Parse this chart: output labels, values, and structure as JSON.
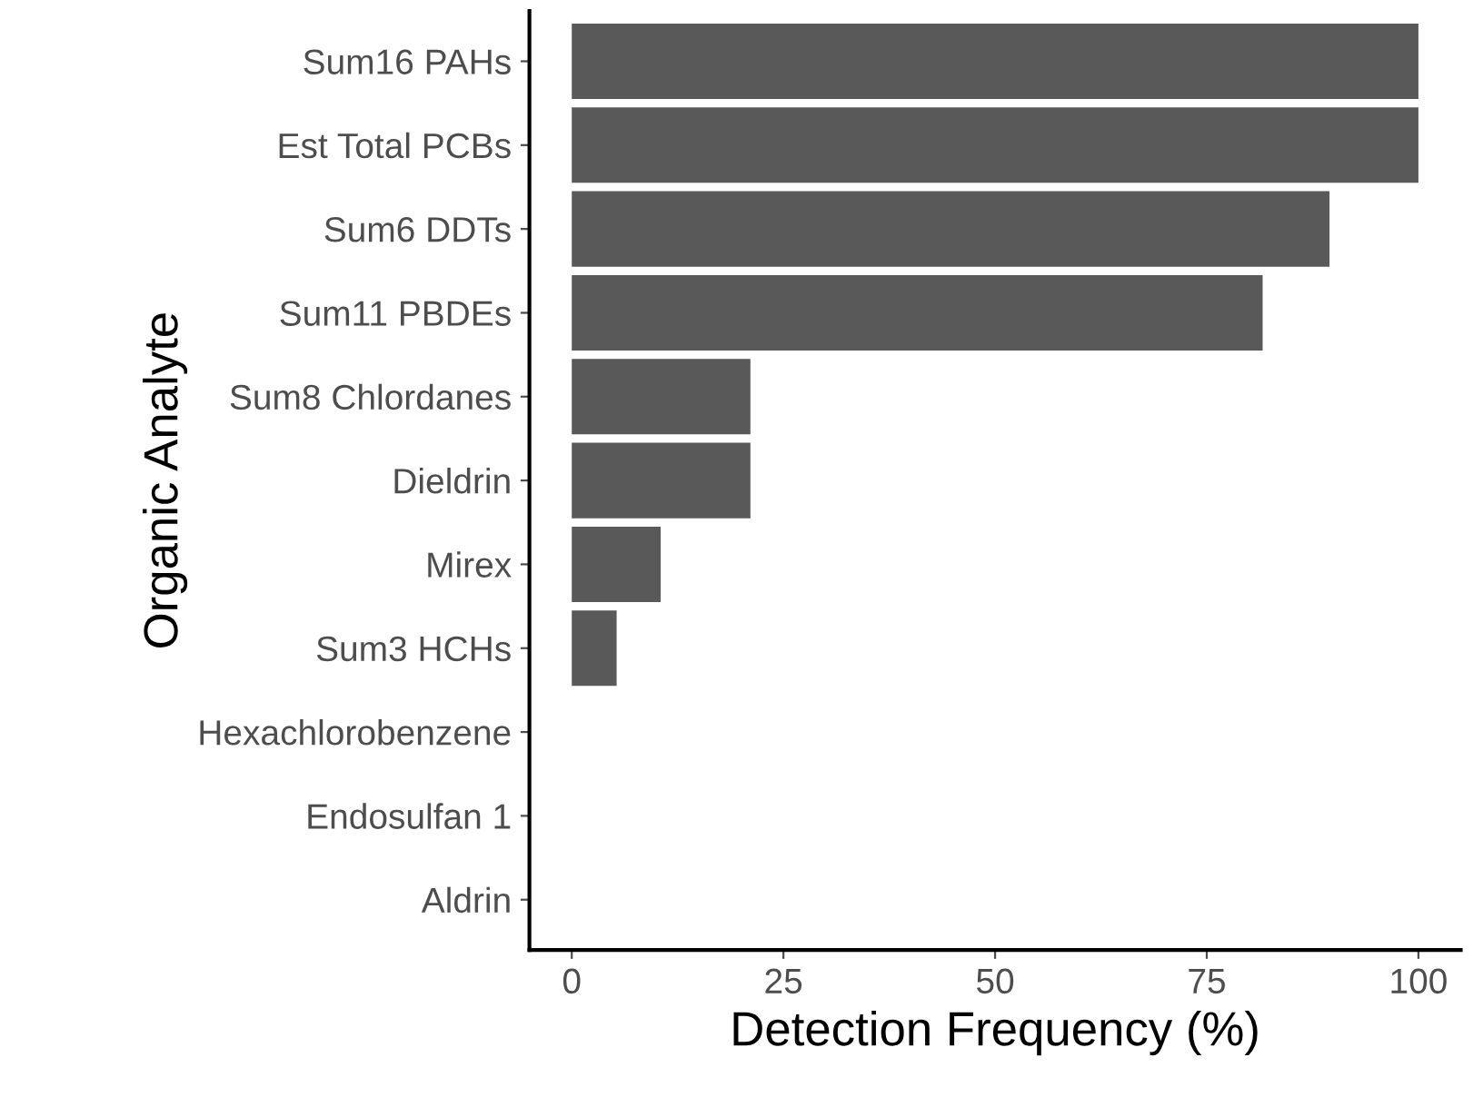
{
  "chart_data": {
    "type": "bar",
    "orientation": "horizontal",
    "xlabel": "Detection Frequency (%)",
    "ylabel": "Organic Analyte",
    "categories": [
      "Sum16 PAHs",
      "Est Total PCBs",
      "Sum6 DDTs",
      "Sum11 PBDEs",
      "Sum8 Chlordanes",
      "Dieldrin",
      "Mirex",
      "Sum3 HCHs",
      "Hexachlorobenzene",
      "Endosulfan 1",
      "Aldrin"
    ],
    "values": [
      100,
      100,
      89.5,
      81.6,
      21.1,
      21.1,
      10.5,
      5.3,
      0,
      0,
      0
    ],
    "color": "#595959",
    "xlim": [
      -5,
      105
    ],
    "xticks": [
      0,
      25,
      50,
      75,
      100
    ],
    "grid": false,
    "legend": false
  }
}
